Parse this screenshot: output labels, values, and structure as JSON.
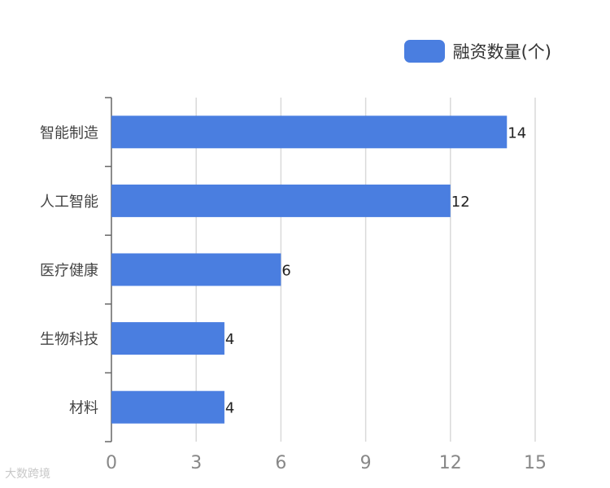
{
  "chart_data": {
    "type": "bar",
    "orientation": "horizontal",
    "categories": [
      "智能制造",
      "人工智能",
      "医疗健康",
      "生物科技",
      "材料"
    ],
    "series": [
      {
        "name": "融资数量(个)",
        "values": [
          14,
          12,
          6,
          4,
          4
        ]
      }
    ],
    "xlim": [
      0,
      15
    ],
    "xticks": [
      "0",
      "3",
      "6",
      "9",
      "12",
      "15"
    ],
    "grid": true,
    "legend_position": "top-right",
    "colors": {
      "bar": "#4a7ee0",
      "grid": "#d9d9d9",
      "axis": "#666666",
      "tick_text": "#888888",
      "category_text": "#444444"
    }
  },
  "watermark": "大数跨境"
}
